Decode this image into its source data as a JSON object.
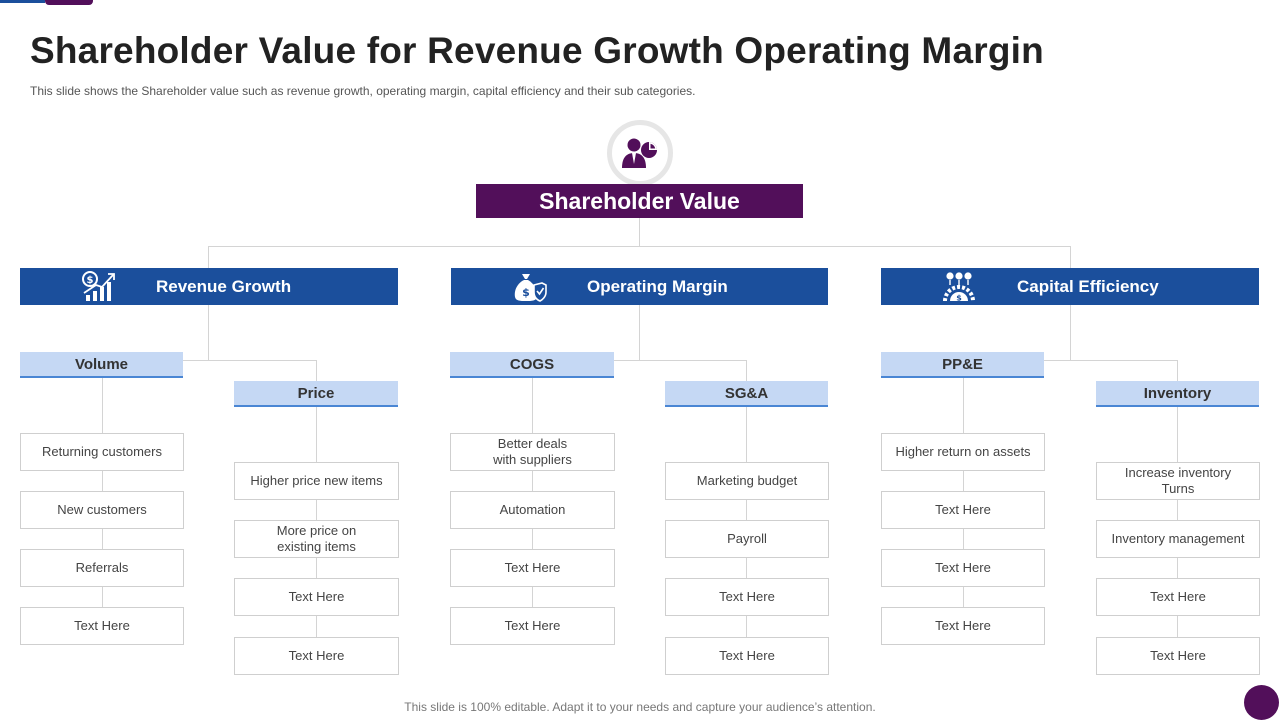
{
  "title": "Shareholder Value for Revenue Growth Operating Margin",
  "subtitle": "This slide shows the Shareholder value such as revenue growth, operating margin, capital efficiency and their sub categories.",
  "footer": "This slide is 100% editable. Adapt it to your needs and capture your audience’s attention.",
  "colors": {
    "purple": "#520f5a",
    "blue": "#1b4f9c",
    "light_blue": "#c5d8f4",
    "sub_border": "#4a86d4",
    "connector": "#d4d4d4"
  },
  "root": {
    "label": "Shareholder Value",
    "icon": "investor-icon"
  },
  "categories": [
    {
      "label": "Revenue Growth",
      "icon": "dollar-growth-chart-icon",
      "subs": [
        {
          "label": "Volume",
          "items": [
            "Returning customers",
            "New customers",
            "Referrals",
            "Text Here"
          ]
        },
        {
          "label": "Price",
          "items": [
            "Higher price new items",
            "More price on\nexisting items",
            "Text Here",
            "Text Here"
          ]
        }
      ]
    },
    {
      "label": "Operating Margin",
      "icon": "money-bag-shield-icon",
      "subs": [
        {
          "label": "COGS",
          "items": [
            "Better deals\nwith suppliers",
            "Automation",
            "Text Here",
            "Text Here"
          ]
        },
        {
          "label": "SG&A",
          "items": [
            "Marketing budget",
            "Payroll",
            "Text Here",
            "Text Here"
          ]
        }
      ]
    },
    {
      "label": "Capital Efficiency",
      "icon": "gear-dollar-icon",
      "subs": [
        {
          "label": "PP&E",
          "items": [
            "Higher return on assets",
            "Text Here",
            "Text Here",
            "Text Here"
          ]
        },
        {
          "label": "Inventory",
          "items": [
            "Increase inventory\nTurns",
            "Inventory  management",
            "Text Here",
            "Text Here"
          ]
        }
      ]
    }
  ]
}
